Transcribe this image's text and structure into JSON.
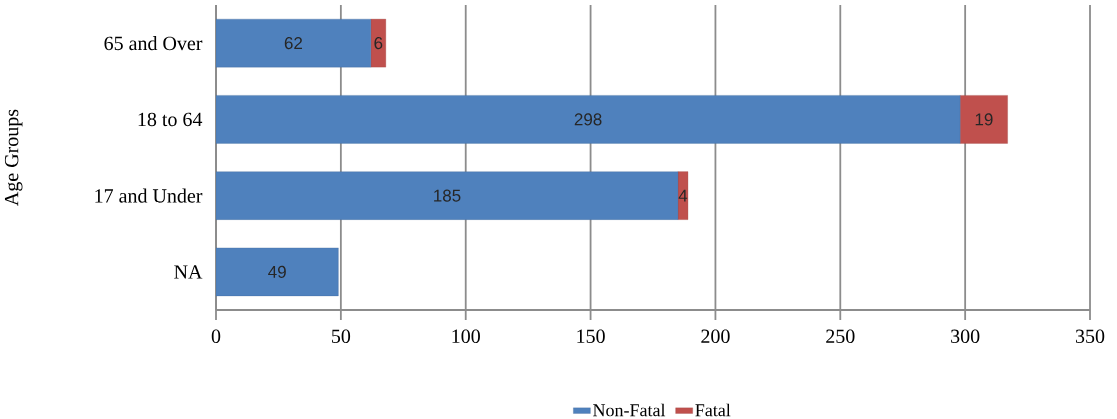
{
  "chart_data": {
    "type": "bar",
    "orientation": "horizontal",
    "stacked": true,
    "ylabel": "Age Groups",
    "categories": [
      "65 and Over",
      "18 to 64",
      "17 and Under",
      "NA"
    ],
    "series": [
      {
        "name": "Non-Fatal",
        "color": "#4f81bd",
        "values": [
          62,
          298,
          185,
          49
        ]
      },
      {
        "name": "Fatal",
        "color": "#c0504d",
        "values": [
          6,
          19,
          4,
          null
        ]
      }
    ],
    "xlim": [
      0,
      350
    ],
    "xticks": [
      0,
      50,
      100,
      150,
      200,
      250,
      300,
      350
    ],
    "grid": "x",
    "legend": "bottom",
    "data_labels": true
  }
}
